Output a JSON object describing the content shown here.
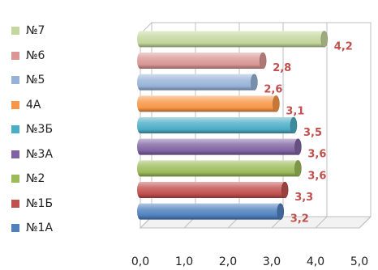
{
  "chart_data": {
    "type": "bar",
    "orientation": "horizontal",
    "style": "3d-cylinder",
    "categories": [
      "№1А",
      "№1Б",
      "№2",
      "№3А",
      "№3Б",
      "4А",
      "№5",
      "№6",
      "№7"
    ],
    "values": [
      3.2,
      3.3,
      3.6,
      3.6,
      3.5,
      3.1,
      2.6,
      2.8,
      4.2
    ],
    "value_labels": [
      "3,2",
      "3,3",
      "3,6",
      "3,6",
      "3,5",
      "3,1",
      "2,6",
      "2,8",
      "4,2"
    ],
    "colors": [
      "#4f81bd",
      "#c0504d",
      "#9bbb59",
      "#8064a2",
      "#4bacc6",
      "#f79646",
      "#95b3d7",
      "#d99694",
      "#c3d69b"
    ],
    "x_ticks": [
      "0,0",
      "1,0",
      "2,0",
      "3,0",
      "4,0",
      "5,0"
    ],
    "xlim": [
      0,
      5
    ],
    "grid": true,
    "legend_position": "left",
    "value_label_color": "#c0504d",
    "title": "",
    "xlabel": "",
    "ylabel": ""
  }
}
